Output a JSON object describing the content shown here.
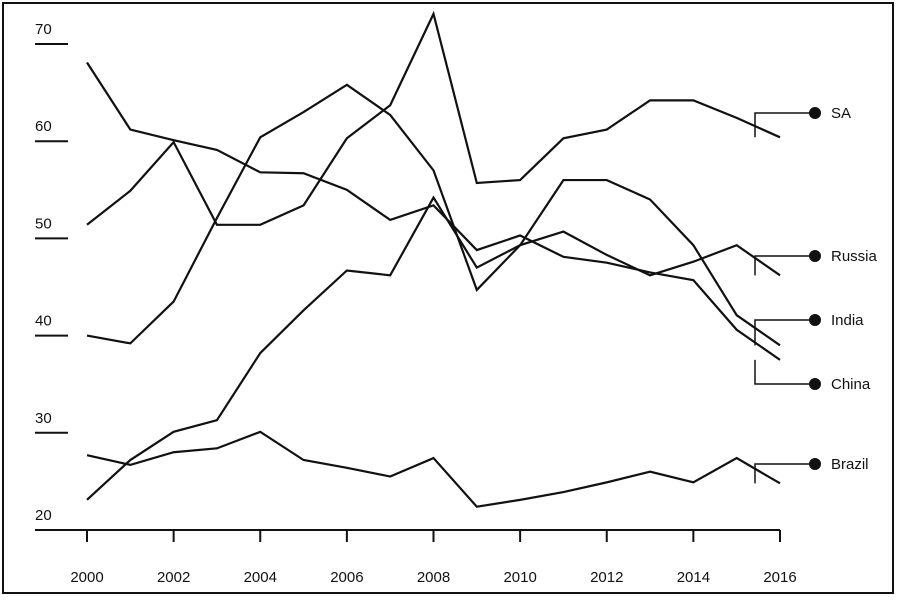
{
  "chart_data": {
    "type": "line",
    "x": [
      2000,
      2001,
      2002,
      2003,
      2004,
      2005,
      2006,
      2007,
      2008,
      2009,
      2010,
      2011,
      2012,
      2013,
      2014,
      2015,
      2016
    ],
    "xlim": [
      2000,
      2016
    ],
    "xticks": [
      2000,
      2002,
      2004,
      2006,
      2008,
      2010,
      2012,
      2014,
      2016
    ],
    "ylim": [
      20,
      70
    ],
    "yticks": [
      20,
      30,
      40,
      50,
      60,
      70
    ],
    "series": [
      {
        "name": "SA",
        "color": "#111111",
        "values": [
          51.4,
          54.9,
          59.9,
          51.4,
          51.4,
          53.4,
          60.3,
          63.7,
          73.1,
          55.7,
          56.0,
          60.3,
          61.2,
          64.2,
          64.2,
          62.4,
          60.4
        ]
      },
      {
        "name": "Russia",
        "color": "#111111",
        "values": [
          23.1,
          27.2,
          30.1,
          31.3,
          38.2,
          42.6,
          46.7,
          46.2,
          54.2,
          47.0,
          49.3,
          50.7,
          48.3,
          46.2,
          47.6,
          49.3,
          46.2
        ]
      },
      {
        "name": "India",
        "color": "#111111",
        "values": [
          40.0,
          39.2,
          43.5,
          52.1,
          60.4,
          63.0,
          65.8,
          62.7,
          57.0,
          44.7,
          49.3,
          56.0,
          56.0,
          54.0,
          49.3,
          42.1,
          39.0
        ]
      },
      {
        "name": "China",
        "color": "#111111",
        "values": [
          68.1,
          61.2,
          60.1,
          59.1,
          56.8,
          56.7,
          55.0,
          51.9,
          53.4,
          48.8,
          50.3,
          48.1,
          47.5,
          46.5,
          45.7,
          40.6,
          37.5
        ]
      },
      {
        "name": "Brazil",
        "color": "#111111",
        "values": [
          27.7,
          26.7,
          28.0,
          28.4,
          30.1,
          27.2,
          26.4,
          25.5,
          27.4,
          22.4,
          23.1,
          23.9,
          24.9,
          26.0,
          24.9,
          27.4,
          24.8
        ]
      }
    ]
  }
}
